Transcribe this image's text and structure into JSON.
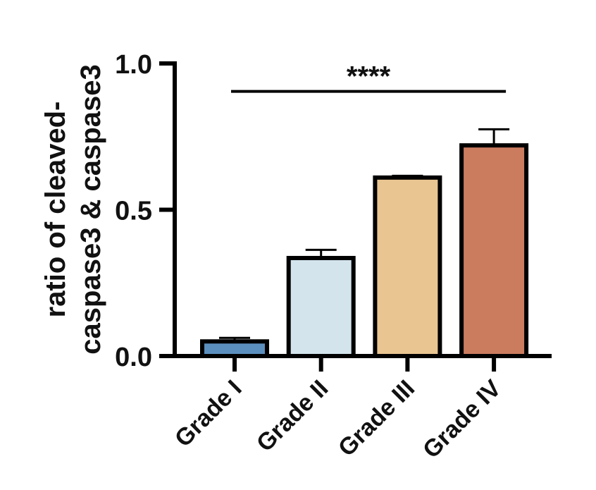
{
  "chart_data": {
    "type": "bar",
    "categories": [
      "Grade I",
      "Grade II",
      "Grade III",
      "Grade IV"
    ],
    "values": [
      0.05,
      0.335,
      0.61,
      0.72
    ],
    "errors": [
      0.012,
      0.028,
      0.006,
      0.055
    ],
    "colors": [
      "#5b8fbe",
      "#d3e4ec",
      "#e9c591",
      "#cb7c5f"
    ],
    "title": "",
    "xlabel": "",
    "ylabel_lines": [
      "ratio of cleaved-",
      "caspase3 & caspase3"
    ],
    "ylim": [
      0,
      1.0
    ],
    "yticks": [
      {
        "value": 0.0,
        "label": "0.0"
      },
      {
        "value": 0.5,
        "label": "0.5"
      },
      {
        "value": 1.0,
        "label": "1.0"
      }
    ],
    "significance": {
      "label": "****",
      "from_category": "Grade I",
      "to_category": "Grade IV",
      "value": 0.96
    },
    "grid": false,
    "legend": "none"
  }
}
